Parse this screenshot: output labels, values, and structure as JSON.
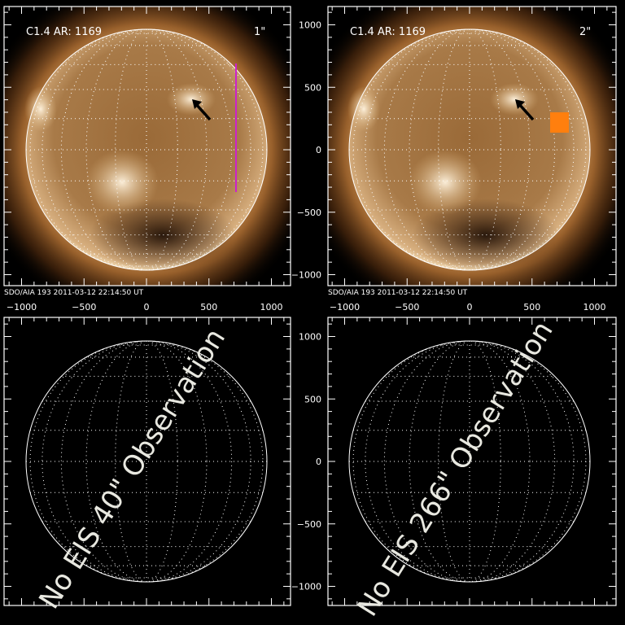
{
  "colors": {
    "background": "#000000",
    "frame": "#ffffff",
    "corona": "#c8904a",
    "slit_marker": "#cc22cc",
    "raster_marker": "#ff7f0e",
    "grid": "#ffffff"
  },
  "axis": {
    "x_ticks": [
      -1000,
      -500,
      0,
      500,
      1000
    ],
    "y_ticks": [
      1000,
      500,
      0,
      -500,
      -1000
    ],
    "range": [
      -1150,
      1150
    ],
    "units": "arcsec"
  },
  "panels": [
    {
      "id": "top-left",
      "type": "aia-image",
      "flare_label": "C1.4",
      "ar_label": "AR: 1169",
      "marker_label": "1\"",
      "marker_color": "#cc22cc",
      "marker": "slit",
      "caption": "SDO/AIA 193  2011-03-12 22:14:50 UT"
    },
    {
      "id": "top-right",
      "type": "aia-image",
      "flare_label": "C1.4",
      "ar_label": "AR: 1169",
      "marker_label": "2\"",
      "marker_color": "#ff7f0e",
      "marker": "raster",
      "caption": "SDO/AIA 193  2011-03-12 22:14:50 UT"
    },
    {
      "id": "bottom-left",
      "type": "empty",
      "message": "No EIS 40\" Observation"
    },
    {
      "id": "bottom-right",
      "type": "empty",
      "message": "No EIS 266\" Observation"
    }
  ]
}
